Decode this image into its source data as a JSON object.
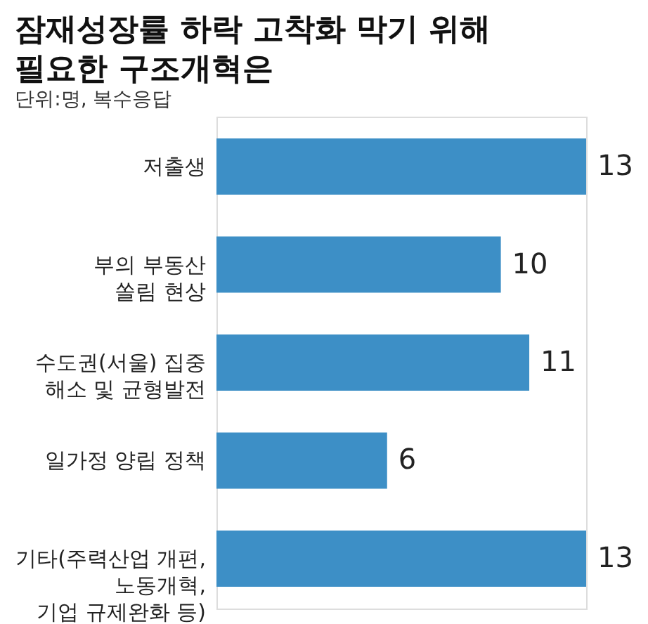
{
  "chart_data": {
    "type": "bar",
    "orientation": "horizontal",
    "title": "잠재성장률 하락 고착화 막기 위해\n필요한 구조개혁은",
    "subtitle": "단위:명, 복수응답",
    "categories": [
      "저출생",
      "부의 부동산\n쏠림 현상",
      "수도권(서울) 집중\n해소 및 균형발전",
      "일가정 양립 정책",
      "기타(주력산업 개편,\n노동개혁,\n기업 규제완화 등)"
    ],
    "values": [
      13,
      10,
      11,
      6,
      13
    ],
    "color": "#3d8fc6",
    "data_labels": true,
    "xlim": [
      0,
      13
    ]
  }
}
